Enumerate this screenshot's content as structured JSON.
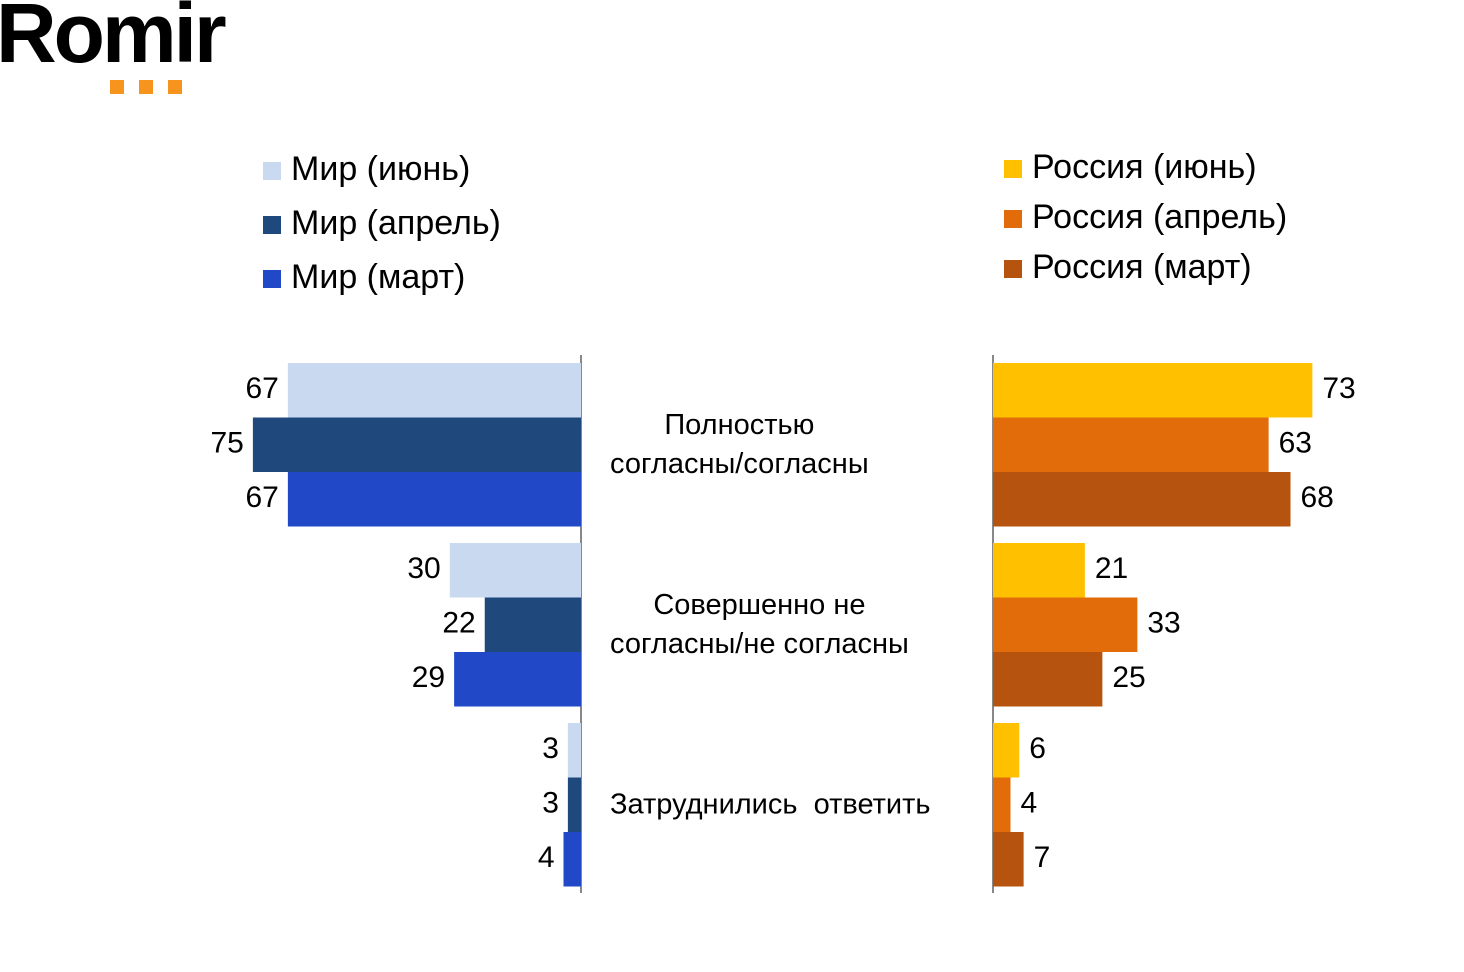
{
  "logo": "Romir",
  "chart_data": {
    "type": "diverging_bar",
    "categories": [
      "Полностью\nсогласны/согласны",
      "Совершенно не\nсогласны/не согласны",
      "Затруднились  ответить"
    ],
    "xlim": [
      0,
      80
    ],
    "series": [
      {
        "name": "Мир (июнь)",
        "color": "#c9d9ef",
        "side": "left",
        "values": [
          67,
          30,
          3
        ]
      },
      {
        "name": "Мир (апрель)",
        "color": "#1f497d",
        "side": "left",
        "values": [
          75,
          22,
          3
        ]
      },
      {
        "name": "Мир (март)",
        "color": "#2149c7",
        "side": "left",
        "values": [
          67,
          29,
          4
        ]
      },
      {
        "name": "Россия (июнь)",
        "color": "#ffc000",
        "side": "right",
        "values": [
          73,
          21,
          6
        ]
      },
      {
        "name": "Россия (апрель)",
        "color": "#e36c0a",
        "side": "right",
        "values": [
          63,
          33,
          4
        ]
      },
      {
        "name": "Россия (март)",
        "color": "#b6540f",
        "side": "right",
        "values": [
          68,
          25,
          7
        ]
      }
    ]
  }
}
